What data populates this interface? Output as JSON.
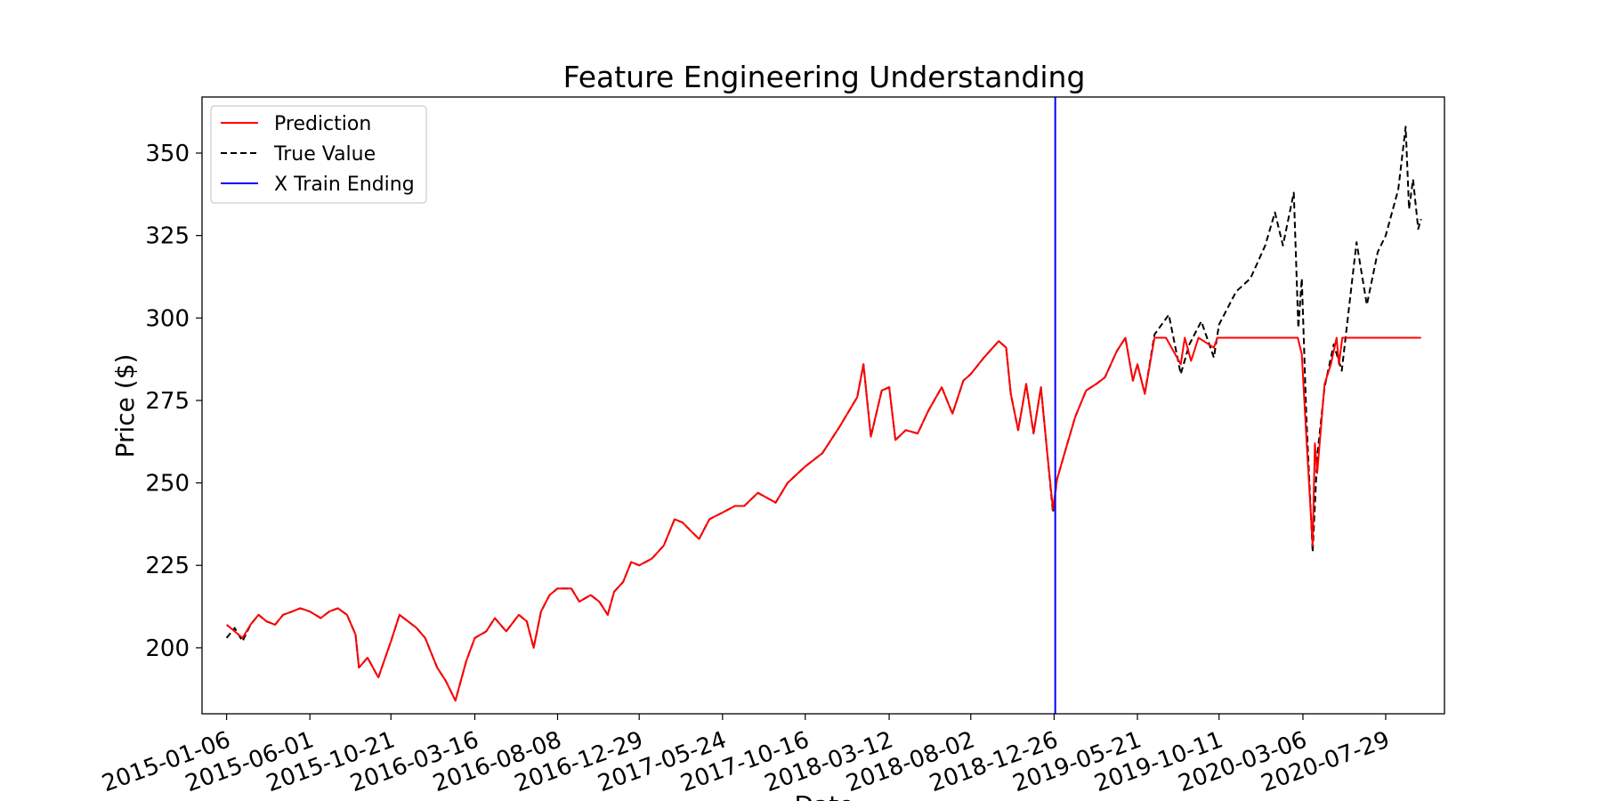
{
  "chart_data": {
    "type": "line",
    "title": "Feature Engineering Understanding",
    "xlabel": "Date",
    "ylabel": "Price ($)",
    "ylim": [
      180,
      367
    ],
    "yticks": [
      200,
      225,
      250,
      275,
      300,
      325,
      350
    ],
    "xlim": [
      "2014-11-24",
      "2020-11-09"
    ],
    "xticks": [
      "2015-01-06",
      "2015-06-01",
      "2015-10-21",
      "2016-03-16",
      "2016-08-08",
      "2016-12-29",
      "2017-05-24",
      "2017-10-16",
      "2018-03-12",
      "2018-08-02",
      "2018-12-26",
      "2019-05-21",
      "2019-10-11",
      "2020-03-06",
      "2020-07-29"
    ],
    "grid": false,
    "legend_position": "top-left",
    "legend": [
      "Prediction",
      "True Value",
      "X Train Ending"
    ],
    "series": [
      {
        "name": "True Value",
        "color": "#000000",
        "dash": "dashed",
        "points": [
          [
            "2015-01-06",
            203
          ],
          [
            "2015-01-20",
            206
          ],
          [
            "2015-02-03",
            202
          ],
          [
            "2015-02-17",
            207
          ],
          [
            "2015-03-03",
            210
          ],
          [
            "2015-03-17",
            208
          ],
          [
            "2015-04-01",
            207
          ],
          [
            "2015-04-15",
            210
          ],
          [
            "2015-05-01",
            211
          ],
          [
            "2015-05-15",
            212
          ],
          [
            "2015-06-01",
            211
          ],
          [
            "2015-06-20",
            209
          ],
          [
            "2015-07-05",
            211
          ],
          [
            "2015-07-20",
            212
          ],
          [
            "2015-08-05",
            210
          ],
          [
            "2015-08-20",
            204
          ],
          [
            "2015-08-26",
            194
          ],
          [
            "2015-09-10",
            197
          ],
          [
            "2015-09-29",
            191
          ],
          [
            "2015-10-21",
            202
          ],
          [
            "2015-11-05",
            210
          ],
          [
            "2015-11-20",
            208
          ],
          [
            "2015-12-05",
            206
          ],
          [
            "2015-12-20",
            203
          ],
          [
            "2016-01-10",
            194
          ],
          [
            "2016-01-25",
            190
          ],
          [
            "2016-02-11",
            184
          ],
          [
            "2016-03-01",
            196
          ],
          [
            "2016-03-16",
            203
          ],
          [
            "2016-04-05",
            205
          ],
          [
            "2016-04-20",
            209
          ],
          [
            "2016-05-10",
            205
          ],
          [
            "2016-06-01",
            210
          ],
          [
            "2016-06-15",
            208
          ],
          [
            "2016-06-27",
            200
          ],
          [
            "2016-07-10",
            211
          ],
          [
            "2016-07-25",
            216
          ],
          [
            "2016-08-08",
            218
          ],
          [
            "2016-09-01",
            218
          ],
          [
            "2016-09-15",
            214
          ],
          [
            "2016-10-05",
            216
          ],
          [
            "2016-10-20",
            214
          ],
          [
            "2016-11-04",
            210
          ],
          [
            "2016-11-15",
            217
          ],
          [
            "2016-12-01",
            220
          ],
          [
            "2016-12-15",
            226
          ],
          [
            "2016-12-29",
            225
          ],
          [
            "2017-01-20",
            227
          ],
          [
            "2017-02-10",
            231
          ],
          [
            "2017-03-01",
            239
          ],
          [
            "2017-03-15",
            238
          ],
          [
            "2017-04-01",
            235
          ],
          [
            "2017-04-13",
            233
          ],
          [
            "2017-05-01",
            239
          ],
          [
            "2017-05-24",
            241
          ],
          [
            "2017-06-15",
            243
          ],
          [
            "2017-07-01",
            243
          ],
          [
            "2017-07-25",
            247
          ],
          [
            "2017-08-15",
            245
          ],
          [
            "2017-08-25",
            244
          ],
          [
            "2017-09-15",
            250
          ],
          [
            "2017-10-16",
            255
          ],
          [
            "2017-11-15",
            259
          ],
          [
            "2017-12-15",
            267
          ],
          [
            "2018-01-15",
            276
          ],
          [
            "2018-01-26",
            286
          ],
          [
            "2018-02-08",
            264
          ],
          [
            "2018-02-27",
            278
          ],
          [
            "2018-03-12",
            279
          ],
          [
            "2018-03-23",
            263
          ],
          [
            "2018-04-10",
            266
          ],
          [
            "2018-05-01",
            265
          ],
          [
            "2018-05-20",
            272
          ],
          [
            "2018-06-12",
            279
          ],
          [
            "2018-07-01",
            271
          ],
          [
            "2018-07-20",
            281
          ],
          [
            "2018-08-02",
            283
          ],
          [
            "2018-08-25",
            288
          ],
          [
            "2018-09-20",
            293
          ],
          [
            "2018-10-03",
            291
          ],
          [
            "2018-10-11",
            277
          ],
          [
            "2018-10-24",
            266
          ],
          [
            "2018-11-07",
            280
          ],
          [
            "2018-11-20",
            265
          ],
          [
            "2018-12-03",
            279
          ],
          [
            "2018-12-14",
            259
          ],
          [
            "2018-12-24",
            241
          ],
          [
            "2018-12-31",
            251
          ],
          [
            "2019-01-15",
            260
          ],
          [
            "2019-02-01",
            270
          ],
          [
            "2019-02-20",
            278
          ],
          [
            "2019-03-10",
            280
          ],
          [
            "2019-03-25",
            282
          ],
          [
            "2019-04-15",
            290
          ],
          [
            "2019-04-30",
            294
          ],
          [
            "2019-05-13",
            281
          ],
          [
            "2019-05-21",
            286
          ],
          [
            "2019-06-03",
            277
          ],
          [
            "2019-06-20",
            295
          ],
          [
            "2019-07-15",
            301
          ],
          [
            "2019-08-05",
            283
          ],
          [
            "2019-08-20",
            292
          ],
          [
            "2019-09-10",
            299
          ],
          [
            "2019-10-02",
            288
          ],
          [
            "2019-10-11",
            298
          ],
          [
            "2019-11-10",
            308
          ],
          [
            "2019-12-05",
            312
          ],
          [
            "2019-12-31",
            322
          ],
          [
            "2020-01-17",
            332
          ],
          [
            "2020-01-31",
            322
          ],
          [
            "2020-02-19",
            338
          ],
          [
            "2020-02-27",
            297
          ],
          [
            "2020-03-04",
            312
          ],
          [
            "2020-03-12",
            270
          ],
          [
            "2020-03-23",
            229
          ],
          [
            "2020-03-31",
            258
          ],
          [
            "2020-04-13",
            279
          ],
          [
            "2020-04-29",
            292
          ],
          [
            "2020-05-13",
            284
          ],
          [
            "2020-06-08",
            323
          ],
          [
            "2020-06-26",
            304
          ],
          [
            "2020-07-15",
            320
          ],
          [
            "2020-07-29",
            325
          ],
          [
            "2020-08-20",
            339
          ],
          [
            "2020-09-02",
            358
          ],
          [
            "2020-09-08",
            333
          ],
          [
            "2020-09-15",
            342
          ],
          [
            "2020-09-24",
            327
          ],
          [
            "2020-09-29",
            330
          ]
        ]
      },
      {
        "name": "Prediction",
        "color": "#ff0000",
        "dash": "solid",
        "points": [
          [
            "2015-01-06",
            207
          ],
          [
            "2015-01-20",
            205
          ],
          [
            "2015-02-03",
            203
          ],
          [
            "2015-02-17",
            207
          ],
          [
            "2015-03-03",
            210
          ],
          [
            "2015-03-17",
            208
          ],
          [
            "2015-04-01",
            207
          ],
          [
            "2015-04-15",
            210
          ],
          [
            "2015-05-01",
            211
          ],
          [
            "2015-05-15",
            212
          ],
          [
            "2015-06-01",
            211
          ],
          [
            "2015-06-20",
            209
          ],
          [
            "2015-07-05",
            211
          ],
          [
            "2015-07-20",
            212
          ],
          [
            "2015-08-05",
            210
          ],
          [
            "2015-08-20",
            204
          ],
          [
            "2015-08-26",
            194
          ],
          [
            "2015-09-10",
            197
          ],
          [
            "2015-09-29",
            191
          ],
          [
            "2015-10-21",
            202
          ],
          [
            "2015-11-05",
            210
          ],
          [
            "2015-11-20",
            208
          ],
          [
            "2015-12-05",
            206
          ],
          [
            "2015-12-20",
            203
          ],
          [
            "2016-01-10",
            194
          ],
          [
            "2016-01-25",
            190
          ],
          [
            "2016-02-11",
            184
          ],
          [
            "2016-03-01",
            196
          ],
          [
            "2016-03-16",
            203
          ],
          [
            "2016-04-05",
            205
          ],
          [
            "2016-04-20",
            209
          ],
          [
            "2016-05-10",
            205
          ],
          [
            "2016-06-01",
            210
          ],
          [
            "2016-06-15",
            208
          ],
          [
            "2016-06-27",
            200
          ],
          [
            "2016-07-10",
            211
          ],
          [
            "2016-07-25",
            216
          ],
          [
            "2016-08-08",
            218
          ],
          [
            "2016-09-01",
            218
          ],
          [
            "2016-09-15",
            214
          ],
          [
            "2016-10-05",
            216
          ],
          [
            "2016-10-20",
            214
          ],
          [
            "2016-11-04",
            210
          ],
          [
            "2016-11-15",
            217
          ],
          [
            "2016-12-01",
            220
          ],
          [
            "2016-12-15",
            226
          ],
          [
            "2016-12-29",
            225
          ],
          [
            "2017-01-20",
            227
          ],
          [
            "2017-02-10",
            231
          ],
          [
            "2017-03-01",
            239
          ],
          [
            "2017-03-15",
            238
          ],
          [
            "2017-04-01",
            235
          ],
          [
            "2017-04-13",
            233
          ],
          [
            "2017-05-01",
            239
          ],
          [
            "2017-05-24",
            241
          ],
          [
            "2017-06-15",
            243
          ],
          [
            "2017-07-01",
            243
          ],
          [
            "2017-07-25",
            247
          ],
          [
            "2017-08-15",
            245
          ],
          [
            "2017-08-25",
            244
          ],
          [
            "2017-09-15",
            250
          ],
          [
            "2017-10-16",
            255
          ],
          [
            "2017-11-15",
            259
          ],
          [
            "2017-12-15",
            267
          ],
          [
            "2018-01-15",
            276
          ],
          [
            "2018-01-26",
            286
          ],
          [
            "2018-02-08",
            264
          ],
          [
            "2018-02-27",
            278
          ],
          [
            "2018-03-12",
            279
          ],
          [
            "2018-03-23",
            263
          ],
          [
            "2018-04-10",
            266
          ],
          [
            "2018-05-01",
            265
          ],
          [
            "2018-05-20",
            272
          ],
          [
            "2018-06-12",
            279
          ],
          [
            "2018-07-01",
            271
          ],
          [
            "2018-07-20",
            281
          ],
          [
            "2018-08-02",
            283
          ],
          [
            "2018-08-25",
            288
          ],
          [
            "2018-09-20",
            293
          ],
          [
            "2018-10-03",
            291
          ],
          [
            "2018-10-11",
            277
          ],
          [
            "2018-10-24",
            266
          ],
          [
            "2018-11-07",
            280
          ],
          [
            "2018-11-20",
            265
          ],
          [
            "2018-12-03",
            279
          ],
          [
            "2018-12-14",
            259
          ],
          [
            "2018-12-24",
            242
          ],
          [
            "2018-12-31",
            251
          ],
          [
            "2019-01-15",
            260
          ],
          [
            "2019-02-01",
            270
          ],
          [
            "2019-02-20",
            278
          ],
          [
            "2019-03-10",
            280
          ],
          [
            "2019-03-25",
            282
          ],
          [
            "2019-04-15",
            290
          ],
          [
            "2019-04-30",
            294
          ],
          [
            "2019-05-13",
            281
          ],
          [
            "2019-05-21",
            286
          ],
          [
            "2019-06-03",
            277
          ],
          [
            "2019-06-20",
            294
          ],
          [
            "2019-07-10",
            294
          ],
          [
            "2019-08-05",
            286
          ],
          [
            "2019-08-12",
            294
          ],
          [
            "2019-08-23",
            287
          ],
          [
            "2019-09-05",
            294
          ],
          [
            "2019-10-02",
            291
          ],
          [
            "2019-10-08",
            294
          ],
          [
            "2020-02-26",
            294
          ],
          [
            "2020-03-04",
            289
          ],
          [
            "2020-03-12",
            264
          ],
          [
            "2020-03-23",
            231
          ],
          [
            "2020-03-27",
            262
          ],
          [
            "2020-03-31",
            253
          ],
          [
            "2020-04-13",
            280
          ],
          [
            "2020-04-24",
            286
          ],
          [
            "2020-05-04",
            294
          ],
          [
            "2020-05-08",
            286
          ],
          [
            "2020-05-14",
            294
          ],
          [
            "2020-09-29",
            294
          ]
        ]
      }
    ],
    "vline": {
      "name": "X Train Ending",
      "x": "2018-12-28",
      "color": "#0000ff"
    }
  }
}
